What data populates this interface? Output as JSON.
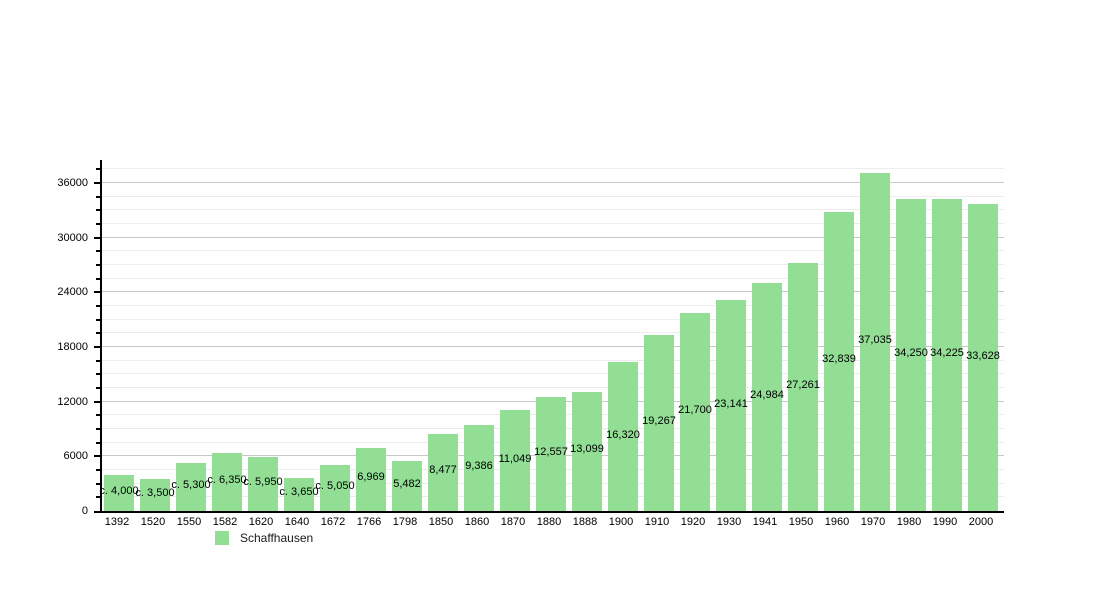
{
  "chart_data": {
    "type": "bar",
    "title": "",
    "xlabel": "",
    "ylabel": "",
    "series_name": "Schaffhausen",
    "categories": [
      "1392",
      "1520",
      "1550",
      "1582",
      "1620",
      "1640",
      "1672",
      "1766",
      "1798",
      "1850",
      "1860",
      "1870",
      "1880",
      "1888",
      "1900",
      "1910",
      "1920",
      "1930",
      "1941",
      "1950",
      "1960",
      "1970",
      "1980",
      "1990",
      "2000"
    ],
    "values": [
      4000,
      3500,
      5300,
      6350,
      5950,
      3650,
      5050,
      6969,
      5482,
      8477,
      9386,
      11049,
      12557,
      13099,
      16320,
      19267,
      21700,
      23141,
      24984,
      27261,
      32839,
      37035,
      34250,
      34225,
      33628
    ],
    "value_labels": [
      "c. 4,000",
      "c. 3,500",
      "c. 5,300",
      "c. 6,350",
      "c. 5,950",
      "c. 3,650",
      "c. 5,050",
      "6,969",
      "5,482",
      "8,477",
      "9,386",
      "11,049",
      "12,557",
      "13,099",
      "16,320",
      "19,267",
      "21,700",
      "23,141",
      "24,984",
      "27,261",
      "32,839",
      "37,035",
      "34,250",
      "34,225",
      "33,628"
    ],
    "ylim": [
      0,
      38500
    ],
    "yticks_major": [
      0,
      6000,
      12000,
      18000,
      24000,
      30000,
      36000
    ],
    "ytick_minor_step": 1500,
    "grid": true,
    "legend_position": "bottom-left",
    "colors": {
      "bar_fill": "#91de94",
      "grid_major": "#c8c8c8",
      "grid_minor": "#ececec",
      "axis": "#000000",
      "text": "#000000"
    }
  },
  "legend": {
    "label": "Schaffhausen"
  }
}
